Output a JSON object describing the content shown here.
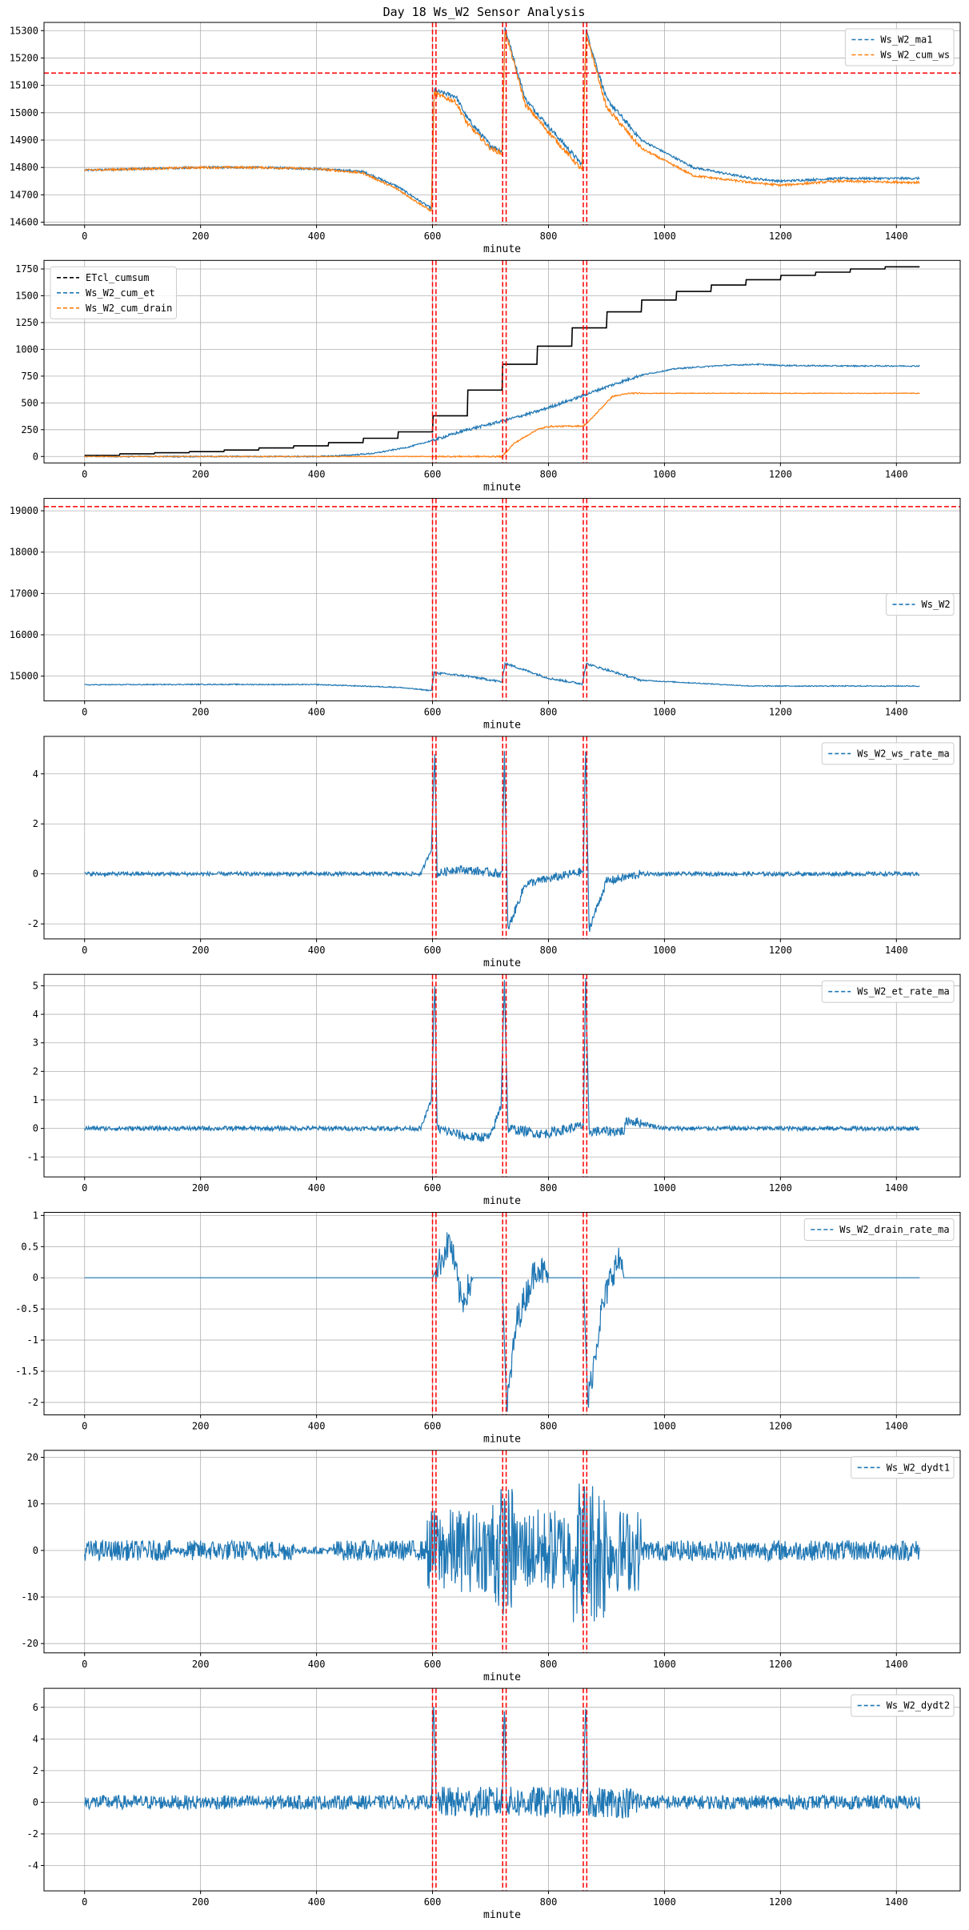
{
  "figure": {
    "title": "Day 18 Ws_W2 Sensor Analysis",
    "colors": {
      "blue": "#1f77b4",
      "orange": "#ff7f0e",
      "black": "#000000",
      "red": "#ff0000"
    },
    "event_lines": [
      600,
      606,
      721,
      727,
      860,
      866
    ]
  },
  "chart_data": [
    {
      "type": "line",
      "xlabel": "minute",
      "xlim": [
        -70,
        1510
      ],
      "ylim": [
        14590,
        15330
      ],
      "xticks": [
        0,
        200,
        400,
        600,
        800,
        1000,
        1200,
        1400
      ],
      "yticks": [
        14600,
        14700,
        14800,
        14900,
        15000,
        15100,
        15200,
        15300
      ],
      "hlines": [
        15145
      ],
      "legend_position": "upper-right",
      "series": [
        {
          "name": "Ws_W2_ma1",
          "color": "#1f77b4",
          "noise": 4,
          "points": [
            [
              0,
              14790
            ],
            [
              100,
              14795
            ],
            [
              200,
              14800
            ],
            [
              300,
              14800
            ],
            [
              400,
              14795
            ],
            [
              480,
              14785
            ],
            [
              540,
              14730
            ],
            [
              598,
              14650
            ],
            [
              603,
              15080
            ],
            [
              640,
              15060
            ],
            [
              660,
              14980
            ],
            [
              700,
              14880
            ],
            [
              720,
              14860
            ],
            [
              725,
              15310
            ],
            [
              760,
              15050
            ],
            [
              800,
              14950
            ],
            [
              858,
              14810
            ],
            [
              865,
              15300
            ],
            [
              900,
              15050
            ],
            [
              960,
              14900
            ],
            [
              1050,
              14800
            ],
            [
              1150,
              14760
            ],
            [
              1200,
              14750
            ],
            [
              1300,
              14760
            ],
            [
              1440,
              14760
            ]
          ]
        },
        {
          "name": "Ws_W2_cum_ws",
          "color": "#ff7f0e",
          "noise": 4,
          "points": [
            [
              0,
              14790
            ],
            [
              100,
              14795
            ],
            [
              200,
              14800
            ],
            [
              300,
              14800
            ],
            [
              400,
              14795
            ],
            [
              480,
              14780
            ],
            [
              540,
              14720
            ],
            [
              598,
              14640
            ],
            [
              603,
              15070
            ],
            [
              640,
              15040
            ],
            [
              660,
              14960
            ],
            [
              700,
              14870
            ],
            [
              720,
              14850
            ],
            [
              725,
              15300
            ],
            [
              760,
              15030
            ],
            [
              800,
              14930
            ],
            [
              858,
              14790
            ],
            [
              865,
              15290
            ],
            [
              900,
              15020
            ],
            [
              960,
              14870
            ],
            [
              1050,
              14770
            ],
            [
              1150,
              14745
            ],
            [
              1200,
              14735
            ],
            [
              1300,
              14750
            ],
            [
              1440,
              14745
            ]
          ]
        }
      ]
    },
    {
      "type": "line",
      "xlabel": "minute",
      "xlim": [
        -70,
        1510
      ],
      "ylim": [
        -60,
        1830
      ],
      "xticks": [
        0,
        200,
        400,
        600,
        800,
        1000,
        1200,
        1400
      ],
      "yticks": [
        0,
        250,
        500,
        750,
        1000,
        1250,
        1500,
        1750
      ],
      "hlines": [],
      "legend_position": "upper-left",
      "series": [
        {
          "name": "ETcl_cumsum",
          "color": "#000000",
          "noise": 0,
          "step": true,
          "points": [
            [
              0,
              10
            ],
            [
              60,
              25
            ],
            [
              120,
              35
            ],
            [
              180,
              45
            ],
            [
              240,
              60
            ],
            [
              300,
              80
            ],
            [
              360,
              100
            ],
            [
              420,
              130
            ],
            [
              480,
              170
            ],
            [
              540,
              230
            ],
            [
              600,
              380
            ],
            [
              660,
              620
            ],
            [
              720,
              860
            ],
            [
              780,
              1030
            ],
            [
              840,
              1200
            ],
            [
              900,
              1350
            ],
            [
              960,
              1460
            ],
            [
              1020,
              1540
            ],
            [
              1080,
              1600
            ],
            [
              1140,
              1650
            ],
            [
              1200,
              1690
            ],
            [
              1260,
              1720
            ],
            [
              1320,
              1750
            ],
            [
              1380,
              1770
            ],
            [
              1440,
              1780
            ]
          ]
        },
        {
          "name": "Ws_W2_cum_et",
          "color": "#1f77b4",
          "noise": 6,
          "points": [
            [
              0,
              0
            ],
            [
              400,
              0
            ],
            [
              450,
              10
            ],
            [
              500,
              30
            ],
            [
              560,
              90
            ],
            [
              600,
              150
            ],
            [
              660,
              250
            ],
            [
              720,
              330
            ],
            [
              780,
              420
            ],
            [
              840,
              530
            ],
            [
              900,
              650
            ],
            [
              960,
              760
            ],
            [
              1020,
              820
            ],
            [
              1100,
              850
            ],
            [
              1160,
              860
            ],
            [
              1200,
              850
            ],
            [
              1300,
              845
            ],
            [
              1440,
              845
            ]
          ]
        },
        {
          "name": "Ws_W2_cum_drain",
          "color": "#ff7f0e",
          "noise": 3,
          "points": [
            [
              0,
              0
            ],
            [
              720,
              0
            ],
            [
              740,
              120
            ],
            [
              780,
              250
            ],
            [
              800,
              280
            ],
            [
              860,
              285
            ],
            [
              870,
              330
            ],
            [
              910,
              560
            ],
            [
              940,
              590
            ],
            [
              1440,
              590
            ]
          ]
        }
      ]
    },
    {
      "type": "line",
      "xlabel": "minute",
      "xlim": [
        -70,
        1510
      ],
      "ylim": [
        14400,
        19300
      ],
      "xticks": [
        0,
        200,
        400,
        600,
        800,
        1000,
        1200,
        1400
      ],
      "yticks": [
        15000,
        16000,
        17000,
        18000,
        19000
      ],
      "hlines": [
        19100
      ],
      "legend_position": "center-right",
      "series": [
        {
          "name": "Ws_W2",
          "color": "#1f77b4",
          "noise": 12,
          "points": [
            [
              0,
              14790
            ],
            [
              200,
              14800
            ],
            [
              400,
              14795
            ],
            [
              540,
              14730
            ],
            [
              598,
              14650
            ],
            [
              603,
              15080
            ],
            [
              660,
              15000
            ],
            [
              720,
              14860
            ],
            [
              725,
              15310
            ],
            [
              800,
              14950
            ],
            [
              858,
              14810
            ],
            [
              865,
              15300
            ],
            [
              960,
              14900
            ],
            [
              1150,
              14760
            ],
            [
              1440,
              14760
            ]
          ]
        }
      ]
    },
    {
      "type": "line",
      "xlabel": "minute",
      "xlim": [
        -70,
        1510
      ],
      "ylim": [
        -2.6,
        5.5
      ],
      "xticks": [
        0,
        200,
        400,
        600,
        800,
        1000,
        1200,
        1400
      ],
      "yticks": [
        -2,
        0,
        2,
        4
      ],
      "hlines": [],
      "legend_position": "upper-right",
      "series": [
        {
          "name": "Ws_W2_ws_rate_ma",
          "color": "#1f77b4",
          "noise": 0.08,
          "points": [
            [
              0,
              0
            ],
            [
              580,
              0
            ],
            [
              598,
              1
            ],
            [
              604,
              4.8
            ],
            [
              608,
              0
            ],
            [
              640,
              0.2
            ],
            [
              720,
              0
            ],
            [
              724,
              4.8
            ],
            [
              730,
              -2.2
            ],
            [
              760,
              -0.4
            ],
            [
              800,
              -0.2
            ],
            [
              860,
              0.1
            ],
            [
              864,
              5.0
            ],
            [
              870,
              -2.2
            ],
            [
              900,
              -0.3
            ],
            [
              960,
              0
            ],
            [
              1440,
              0
            ]
          ]
        }
      ]
    },
    {
      "type": "line",
      "xlabel": "minute",
      "xlim": [
        -70,
        1510
      ],
      "ylim": [
        -1.7,
        5.4
      ],
      "xticks": [
        0,
        200,
        400,
        600,
        800,
        1000,
        1200,
        1400
      ],
      "yticks": [
        -1,
        0,
        1,
        2,
        3,
        4,
        5
      ],
      "hlines": [],
      "legend_position": "upper-right",
      "series": [
        {
          "name": "Ws_W2_et_rate_ma",
          "color": "#1f77b4",
          "noise": 0.08,
          "points": [
            [
              0,
              0
            ],
            [
              580,
              0
            ],
            [
              598,
              1
            ],
            [
              604,
              5.1
            ],
            [
              608,
              0
            ],
            [
              660,
              -0.3
            ],
            [
              700,
              -0.3
            ],
            [
              718,
              0.8
            ],
            [
              724,
              5.2
            ],
            [
              730,
              0
            ],
            [
              790,
              -0.2
            ],
            [
              860,
              0.1
            ],
            [
              864,
              5.1
            ],
            [
              870,
              -0.1
            ],
            [
              930,
              -0.1
            ],
            [
              935,
              0.3
            ],
            [
              1000,
              0
            ],
            [
              1440,
              0
            ]
          ]
        }
      ]
    },
    {
      "type": "line",
      "xlabel": "minute",
      "xlim": [
        -70,
        1510
      ],
      "ylim": [
        -2.2,
        1.05
      ],
      "xticks": [
        0,
        200,
        400,
        600,
        800,
        1000,
        1200,
        1400
      ],
      "yticks": [
        -2.0,
        -1.5,
        -1.0,
        -0.5,
        0.0,
        0.5,
        1.0
      ],
      "hlines": [],
      "legend_position": "upper-right",
      "series": [
        {
          "name": "Ws_W2_drain_rate_ma",
          "color": "#1f77b4",
          "noise": 0,
          "points": [
            [
              0,
              0
            ],
            [
              600,
              0
            ],
            [
              610,
              0.2
            ],
            [
              630,
              0.6
            ],
            [
              650,
              -0.4
            ],
            [
              665,
              -0.1
            ],
            [
              670,
              0
            ],
            [
              720,
              0
            ],
            [
              728,
              -2.1
            ],
            [
              745,
              -0.7
            ],
            [
              780,
              0.2
            ],
            [
              800,
              0
            ],
            [
              860,
              0
            ],
            [
              868,
              -2.0
            ],
            [
              890,
              -0.6
            ],
            [
              910,
              0.1
            ],
            [
              925,
              0.3
            ],
            [
              930,
              0
            ],
            [
              1440,
              0
            ]
          ]
        }
      ]
    },
    {
      "type": "line",
      "xlabel": "minute",
      "xlim": [
        -70,
        1510
      ],
      "ylim": [
        -22,
        21.5
      ],
      "xticks": [
        0,
        200,
        400,
        600,
        800,
        1000,
        1200,
        1400
      ],
      "yticks": [
        -20,
        -10,
        0,
        10,
        20
      ],
      "hlines": [],
      "legend_position": "upper-right",
      "series": [
        {
          "name": "Ws_W2_dydt1",
          "color": "#1f77b4",
          "noise": 2,
          "points": [
            [
              0,
              0
            ],
            [
              500,
              0
            ],
            [
              600,
              0
            ],
            [
              700,
              0
            ],
            [
              800,
              0
            ],
            [
              900,
              0
            ],
            [
              1000,
              0
            ],
            [
              1440,
              0
            ]
          ]
        }
      ]
    },
    {
      "type": "line",
      "xlabel": "minute",
      "xlim": [
        -70,
        1510
      ],
      "ylim": [
        -5.6,
        7.2
      ],
      "xticks": [
        0,
        200,
        400,
        600,
        800,
        1000,
        1200,
        1400
      ],
      "yticks": [
        -4,
        -2,
        0,
        2,
        4,
        6
      ],
      "hlines": [],
      "legend_position": "upper-right",
      "series": [
        {
          "name": "Ws_W2_dydt2",
          "color": "#1f77b4",
          "noise": 0.45,
          "points": [
            [
              0,
              0
            ],
            [
              598,
              0
            ],
            [
              602,
              6
            ],
            [
              606,
              0
            ],
            [
              720,
              0
            ],
            [
              724,
              6
            ],
            [
              728,
              0
            ],
            [
              860,
              0
            ],
            [
              864,
              6.2
            ],
            [
              868,
              0
            ],
            [
              1440,
              0
            ]
          ]
        }
      ]
    }
  ]
}
